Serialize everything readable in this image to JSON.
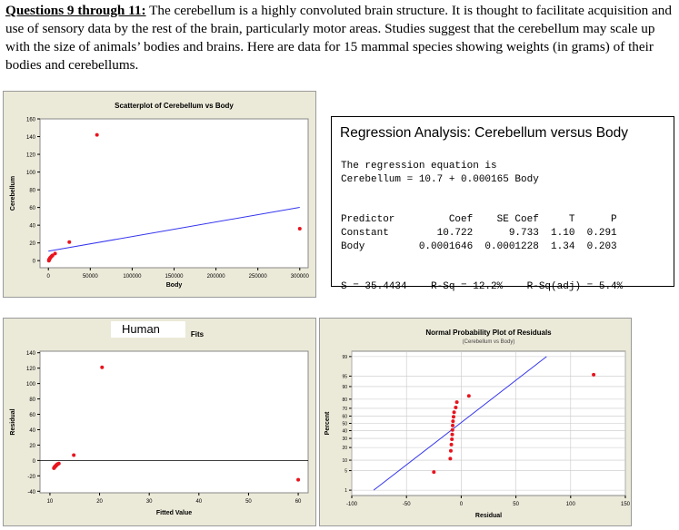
{
  "intro": {
    "heading": "Questions 9 through 11:",
    "text": " The cerebellum is a highly convoluted brain structure.  It is thought to facilitate acquisition and use of sensory data by the rest of the brain, particularly motor areas.  Studies suggest that the cerebellum may scale up with the size of animals’ bodies and brains.  Here are data for 15 mammal species showing weights (in grams) of their bodies and cerebellums."
  },
  "regression": {
    "title": "Regression Analysis: Cerebellum versus Body",
    "eq_line1": "The regression equation is",
    "eq_line2": "Cerebellum = 10.7 + 0.000165 Body",
    "table_header": "Predictor         Coef    SE Coef     T      P",
    "row1": "Constant        10.722      9.733  1.10  0.291",
    "row2": "Body         0.0001646  0.0001228  1.34  0.203",
    "summary": "S = 35.4434    R-Sq = 12.2%    R-Sq(adj) = 5.4%"
  },
  "human_label": "Human",
  "fits_title_tail": "Fits",
  "colors": {
    "point": "#e8141e",
    "line": "#3434ee",
    "panel": "#ebe9d8"
  },
  "chart_data": [
    {
      "type": "scatter",
      "title": "Scatterplot of Cerebellum vs Body",
      "xlabel": "Body",
      "ylabel": "Cerebellum",
      "xlim": [
        -10000,
        310000
      ],
      "ylim": [
        -8,
        160
      ],
      "xticks": [
        "0",
        "50000",
        "100000",
        "150000",
        "200000",
        "250000",
        "300000"
      ],
      "yticks": [
        "0",
        "20",
        "40",
        "60",
        "80",
        "100",
        "120",
        "140",
        "160"
      ],
      "points": [
        [
          58000,
          142
        ],
        [
          300000,
          36
        ],
        [
          25000,
          21
        ],
        [
          8000,
          8
        ],
        [
          5000,
          6
        ],
        [
          3000,
          4
        ],
        [
          1500,
          2
        ],
        [
          1000,
          1
        ],
        [
          600,
          0
        ],
        [
          2000,
          3
        ],
        [
          1200,
          1.5
        ],
        [
          700,
          0.8
        ],
        [
          4000,
          5
        ],
        [
          900,
          1.2
        ],
        [
          1800,
          2.5
        ]
      ],
      "fit_line": {
        "intercept": 10.722,
        "slope": 0.0001646
      },
      "grid": false
    },
    {
      "type": "scatter",
      "title": "Fits",
      "xlabel": "Fitted Value",
      "ylabel": "Residual",
      "xlim": [
        8,
        62
      ],
      "ylim": [
        -42,
        142
      ],
      "xticks": [
        "10",
        "20",
        "30",
        "40",
        "50",
        "60"
      ],
      "yticks": [
        "-40",
        "-20",
        "0",
        "20",
        "40",
        "60",
        "80",
        "100",
        "120",
        "140"
      ],
      "points": [
        [
          20.5,
          121
        ],
        [
          60,
          -25
        ],
        [
          14.8,
          7
        ],
        [
          11.8,
          -4
        ],
        [
          11.5,
          -5
        ],
        [
          11.3,
          -6
        ],
        [
          11.2,
          -7
        ],
        [
          11.0,
          -8
        ],
        [
          10.9,
          -9
        ],
        [
          10.8,
          -10
        ],
        [
          11.4,
          -5.5
        ],
        [
          11.1,
          -7.5
        ],
        [
          11.6,
          -4.5
        ],
        [
          10.85,
          -9.5
        ],
        [
          11.25,
          -6.5
        ]
      ],
      "zero_line": true,
      "grid": false
    },
    {
      "type": "scatter",
      "title": "Normal Probability Plot of Residuals",
      "subtitle": "(Cerebellum vs Body)",
      "xlabel": "Residual",
      "ylabel": "Percent",
      "xlim": [
        -100,
        150
      ],
      "xticks": [
        "-100",
        "-50",
        "0",
        "50",
        "100",
        "150"
      ],
      "yticks": [
        "1",
        "5",
        "10",
        "20",
        "30",
        "40",
        "50",
        "60",
        "70",
        "80",
        "90",
        "95",
        "99"
      ],
      "points": [
        [
          -25,
          4.5
        ],
        [
          -10,
          11
        ],
        [
          -9.5,
          17
        ],
        [
          -9,
          23
        ],
        [
          -8.5,
          29
        ],
        [
          -8.2,
          35
        ],
        [
          -8,
          41
        ],
        [
          -7.8,
          47
        ],
        [
          -7.5,
          53
        ],
        [
          -7,
          59
        ],
        [
          -6.5,
          65
        ],
        [
          -5,
          71
        ],
        [
          -4,
          77
        ],
        [
          7,
          83
        ],
        [
          121,
          95.5
        ]
      ],
      "reference_line": {
        "from": [
          -80,
          1
        ],
        "to": [
          78,
          99
        ]
      },
      "grid": true
    }
  ]
}
